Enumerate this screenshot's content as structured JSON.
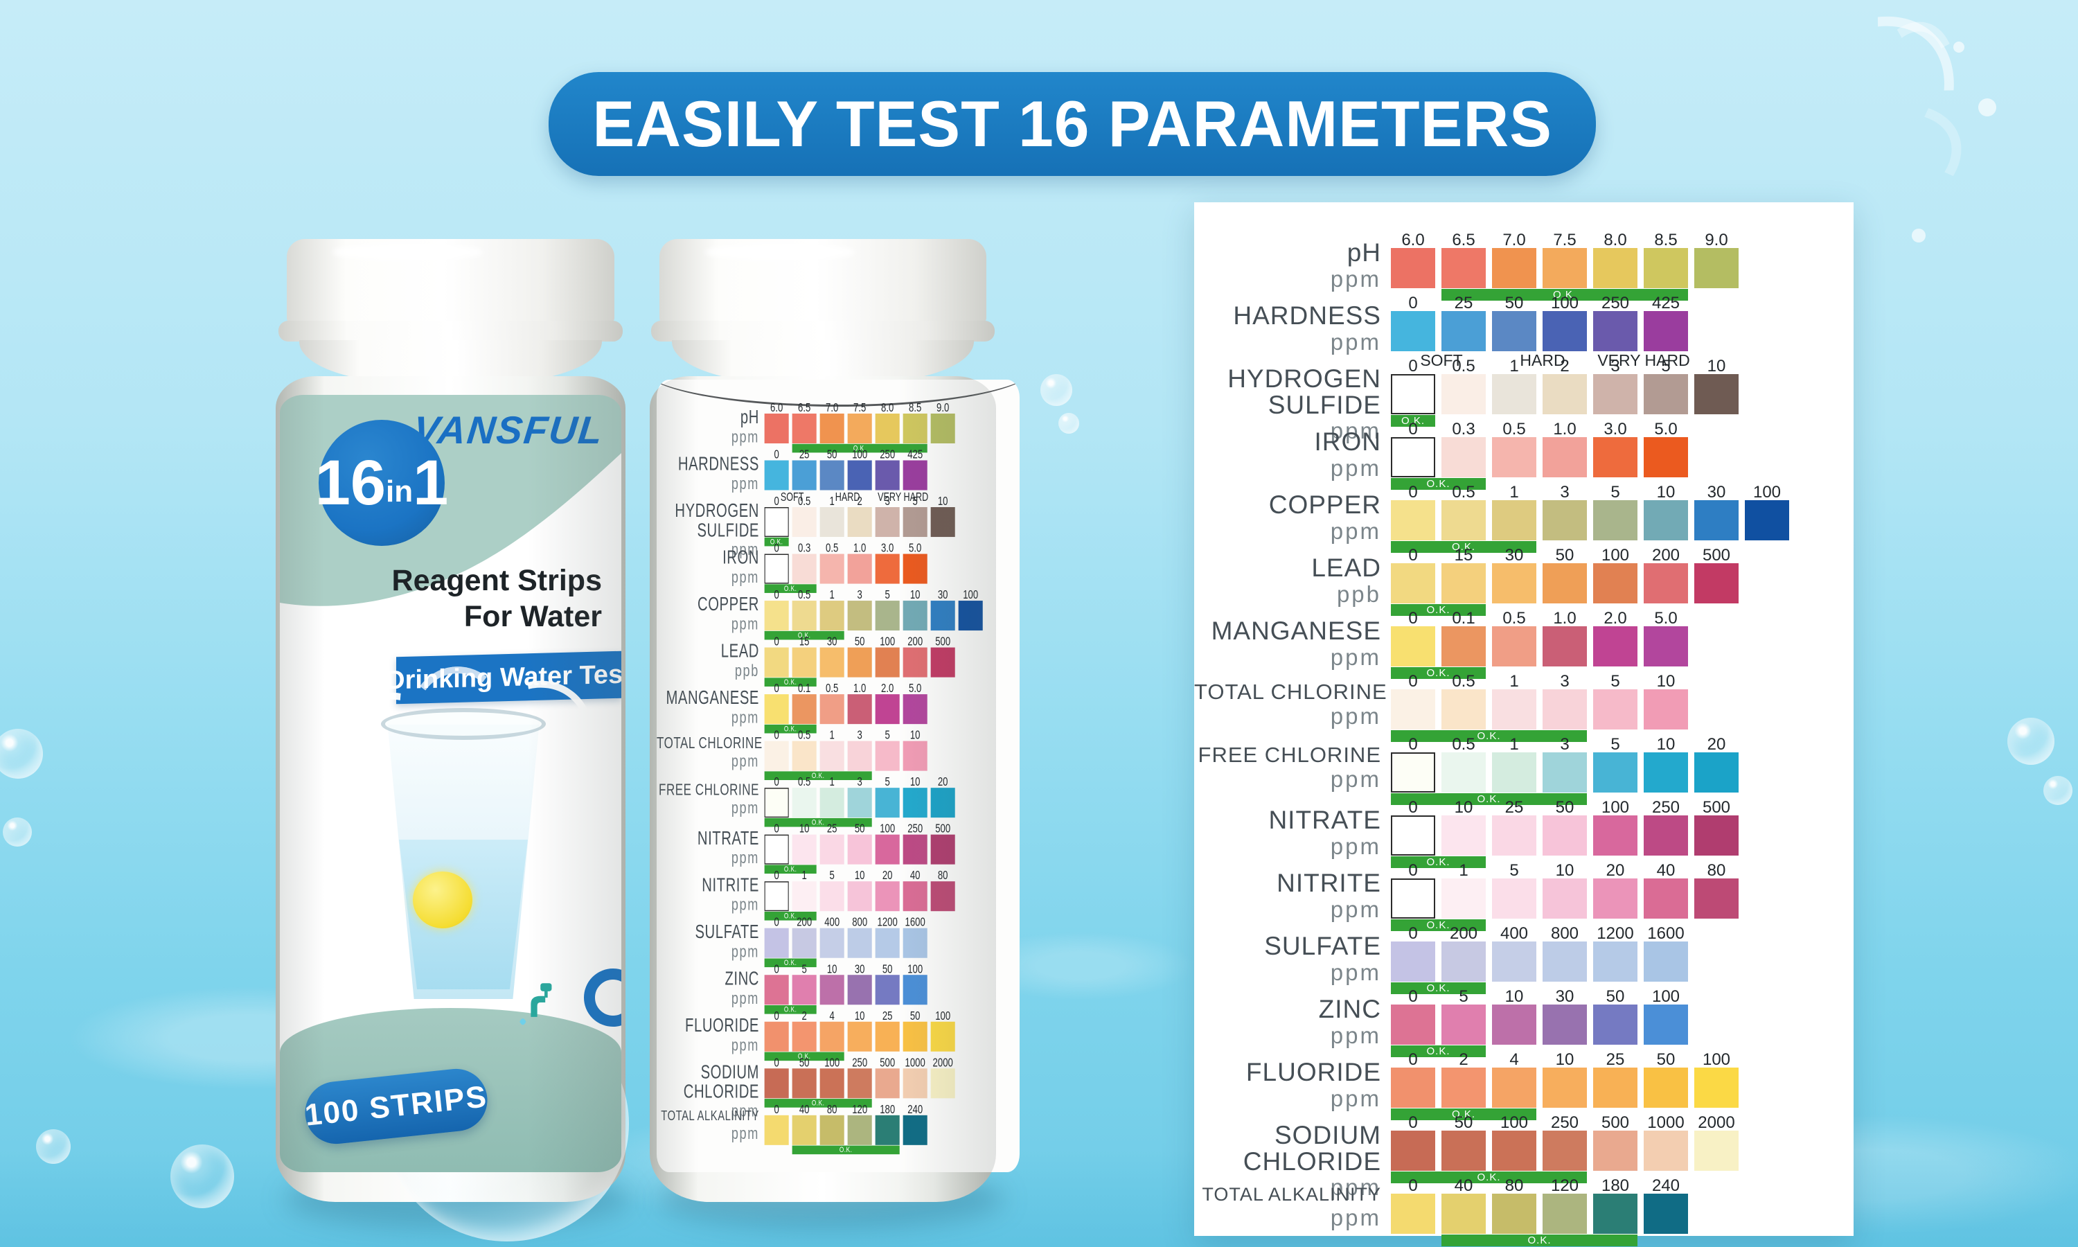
{
  "banner": {
    "text": "EASILY TEST 16 PARAMETERS",
    "bg_color": "#1b7ac1"
  },
  "bottle_front": {
    "brand": "VANSFUL",
    "badge_big_left": "16",
    "badge_small": "in",
    "badge_big_right": "1",
    "subtitle_line1": "Reagent Strips",
    "subtitle_line2": "For Water",
    "ribbon": "Drinking Water Test",
    "count_label": "100 STRIPS"
  },
  "colors": {
    "ok_green": "#34a336",
    "brand_blue": "#1b74c4",
    "label_sage": "#accfc6",
    "panel_bg": "#ffffff"
  },
  "chart": {
    "ok_label": "O.K.",
    "rows": [
      {
        "name": [
          "pH"
        ],
        "unit": "ppm",
        "ticks": [
          "6.0",
          "6.5",
          "7.0",
          "7.5",
          "8.0",
          "8.5",
          "9.0"
        ],
        "colors": [
          "#ec7264",
          "#ee7867",
          "#f0934f",
          "#f3aa5c",
          "#e6c85d",
          "#cfc75f",
          "#b4bd62"
        ],
        "ok": [
          1,
          5
        ]
      },
      {
        "name": [
          "HARDNESS"
        ],
        "unit": "ppm",
        "ticks": [
          "0",
          "25",
          "50",
          "100",
          "250",
          "425"
        ],
        "colors": [
          "#45b5de",
          "#4b9fd6",
          "#5b88c4",
          "#4a63b4",
          "#6a5aac",
          "#9a3d9e"
        ],
        "qualifiers": [
          {
            "label": "SOFT",
            "pos": 1
          },
          {
            "label": "HARD",
            "pos": 3
          },
          {
            "label": "VERY HARD",
            "pos": 5
          }
        ]
      },
      {
        "name": [
          "HYDROGEN",
          "SULFIDE"
        ],
        "unit": "ppm",
        "ticks": [
          "0",
          "0.5",
          "1",
          "2",
          "3",
          "5",
          "10"
        ],
        "colors": [
          "#ffffff",
          "#faeee6",
          "#e9e4da",
          "#eadcc2",
          "#cfb3aa",
          "#b29b93",
          "#6f5b53"
        ],
        "bordered": [
          0
        ],
        "ok": [
          0,
          0
        ]
      },
      {
        "name": [
          "IRON"
        ],
        "unit": "ppm",
        "ticks": [
          "0",
          "0.3",
          "0.5",
          "1.0",
          "3.0",
          "5.0"
        ],
        "colors": [
          "#ffffff",
          "#f8dcd6",
          "#f5b5ad",
          "#f2a29a",
          "#ee6b3d",
          "#eb5a1f"
        ],
        "bordered": [
          0
        ],
        "ok": [
          0,
          1
        ]
      },
      {
        "name": [
          "COPPER"
        ],
        "unit": "ppm",
        "ticks": [
          "0",
          "0.5",
          "1",
          "3",
          "5",
          "10",
          "30",
          "100"
        ],
        "colors": [
          "#f5e18c",
          "#eeda90",
          "#decb80",
          "#c3bd80",
          "#a9b58c",
          "#72aab5",
          "#2e7ec3",
          "#1050a1"
        ],
        "ok": [
          0,
          2
        ]
      },
      {
        "name": [
          "LEAD"
        ],
        "unit": "ppb",
        "ticks": [
          "0",
          "15",
          "30",
          "50",
          "100",
          "200",
          "500"
        ],
        "colors": [
          "#f2d981",
          "#f4d07d",
          "#f6bd6b",
          "#ef9f57",
          "#e18152",
          "#e06e72",
          "#c23a64"
        ],
        "ok": [
          0,
          1
        ]
      },
      {
        "name": [
          "MANGANESE"
        ],
        "unit": "ppm",
        "ticks": [
          "0",
          "0.1",
          "0.5",
          "1.0",
          "2.0",
          "5.0"
        ],
        "colors": [
          "#f8e070",
          "#eb9661",
          "#f09e86",
          "#ca5f76",
          "#c04493",
          "#b2469d"
        ],
        "ok": [
          0,
          1
        ]
      },
      {
        "name": [
          "TOTAL CHLORINE"
        ],
        "unit": "ppm",
        "ticks": [
          "0",
          "0.5",
          "1",
          "3",
          "5",
          "10"
        ],
        "colors": [
          "#fbf1e5",
          "#fae5c9",
          "#f9dfe1",
          "#f8d3d9",
          "#f6bac9",
          "#f19cb5"
        ],
        "ok": [
          0,
          3
        ]
      },
      {
        "name": [
          "FREE CHLORINE"
        ],
        "unit": "ppm",
        "ticks": [
          "0",
          "0.5",
          "1",
          "3",
          "5",
          "10",
          "20"
        ],
        "colors": [
          "#fdfef6",
          "#eaf6ee",
          "#d4ecdf",
          "#9fd4da",
          "#48b4d5",
          "#23a9cd",
          "#1ba3c8"
        ],
        "bordered": [
          0
        ],
        "ok": [
          0,
          3
        ]
      },
      {
        "name": [
          "NITRATE"
        ],
        "unit": "ppm",
        "ticks": [
          "0",
          "10",
          "25",
          "50",
          "100",
          "250",
          "500"
        ],
        "colors": [
          "#ffffff",
          "#fce5ee",
          "#fad8e5",
          "#f7c4d9",
          "#d8689d",
          "#bd4a85",
          "#b03d6f"
        ],
        "bordered": [
          0
        ],
        "ok": [
          0,
          1
        ]
      },
      {
        "name": [
          "NITRITE"
        ],
        "unit": "ppm",
        "ticks": [
          "0",
          "1",
          "5",
          "10",
          "20",
          "40",
          "80"
        ],
        "colors": [
          "#ffffff",
          "#fdeff3",
          "#fbdee9",
          "#f6c4d9",
          "#eb94b9",
          "#da6c95",
          "#bd4a75"
        ],
        "bordered": [
          0
        ],
        "ok": [
          0,
          1
        ]
      },
      {
        "name": [
          "SULFATE"
        ],
        "unit": "ppm",
        "ticks": [
          "0",
          "200",
          "400",
          "800",
          "1200",
          "1600"
        ],
        "colors": [
          "#c4c3e5",
          "#c7c9e3",
          "#c5cee7",
          "#bdcce7",
          "#b5cae7",
          "#a9c5e5"
        ],
        "ok": [
          0,
          1
        ]
      },
      {
        "name": [
          "ZINC"
        ],
        "unit": "ppm",
        "ticks": [
          "0",
          "5",
          "10",
          "30",
          "50",
          "100"
        ],
        "colors": [
          "#dd7394",
          "#e07fae",
          "#bd70a9",
          "#9872af",
          "#757ac2",
          "#4b8fd7"
        ],
        "ok": [
          0,
          1
        ]
      },
      {
        "name": [
          "FLUORIDE"
        ],
        "unit": "ppm",
        "ticks": [
          "0",
          "2",
          "4",
          "10",
          "25",
          "50",
          "100"
        ],
        "colors": [
          "#f1916d",
          "#f3956f",
          "#f5a465",
          "#f7ae5d",
          "#f8b155",
          "#f9c144",
          "#fbd945"
        ],
        "ok": [
          0,
          2
        ]
      },
      {
        "name": [
          "SODIUM",
          "CHLORIDE"
        ],
        "unit": "ppm",
        "ticks": [
          "0",
          "50",
          "100",
          "250",
          "500",
          "1000",
          "2000"
        ],
        "colors": [
          "#c76b55",
          "#c97057",
          "#cb7257",
          "#ce7b5f",
          "#e9a98f",
          "#f3ceb1",
          "#f8f1c5"
        ],
        "ok": [
          0,
          3
        ]
      },
      {
        "name": [
          "TOTAL ALKALINITY"
        ],
        "unit": "ppm",
        "ticks": [
          "0",
          "40",
          "80",
          "120",
          "180",
          "240"
        ],
        "colors": [
          "#f4da6f",
          "#e4d06e",
          "#c6bc69",
          "#acb57f",
          "#2b7e75",
          "#106c85"
        ],
        "ok": [
          1,
          4
        ]
      }
    ]
  }
}
